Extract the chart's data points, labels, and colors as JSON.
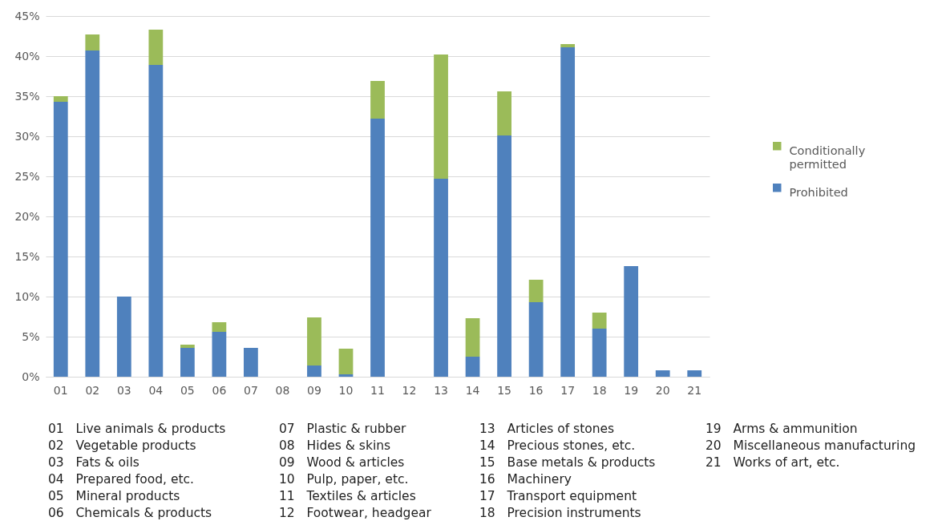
{
  "chart_data": {
    "type": "bar",
    "stacked": true,
    "categories": [
      "01",
      "02",
      "03",
      "04",
      "05",
      "06",
      "07",
      "08",
      "09",
      "10",
      "11",
      "12",
      "13",
      "14",
      "15",
      "16",
      "17",
      "18",
      "19",
      "20",
      "21"
    ],
    "series": [
      {
        "name": "Prohibited",
        "color": "#4f81bd",
        "values": [
          34.3,
          40.7,
          10.0,
          38.9,
          3.6,
          5.6,
          3.6,
          0,
          1.4,
          0.3,
          32.2,
          0,
          24.7,
          2.5,
          30.1,
          9.3,
          41.1,
          6.0,
          13.8,
          0.8,
          0.8
        ]
      },
      {
        "name": "Conditionally permitted",
        "color": "#9bbb59",
        "values": [
          0.7,
          2.0,
          0,
          4.4,
          0.4,
          1.2,
          0,
          0,
          6.0,
          3.2,
          4.7,
          0,
          15.5,
          4.8,
          5.5,
          2.8,
          0.4,
          2.0,
          0,
          0,
          0
        ]
      }
    ],
    "ylim": [
      0,
      45
    ],
    "yticks": [
      {
        "value": 0,
        "label": "0%"
      },
      {
        "value": 5,
        "label": "5%"
      },
      {
        "value": 10,
        "label": "10%"
      },
      {
        "value": 15,
        "label": "15%"
      },
      {
        "value": 20,
        "label": "20%"
      },
      {
        "value": 25,
        "label": "25%"
      },
      {
        "value": 30,
        "label": "30%"
      },
      {
        "value": 35,
        "label": "35%"
      },
      {
        "value": 40,
        "label": "40%"
      },
      {
        "value": 45,
        "label": "45%"
      }
    ],
    "grid": "y",
    "legend": "right",
    "annotations": [
      "01   Live animals & products",
      "02   Vegetable products",
      "03   Fats & oils",
      "04   Prepared food, etc.",
      "05   Mineral products",
      "06   Chemicals & products",
      "07   Plastic & rubber",
      "08   Hides & skins",
      "09   Wood & articles",
      "10   Pulp, paper, etc.",
      "11   Textiles & articles",
      "12   Footwear, headgear",
      "13   Articles of stones",
      "14   Precious stones, etc.",
      "15   Base metals & products",
      "16   Machinery",
      "17   Transport equipment",
      "18   Precision instruments",
      "19   Arms & ammunition",
      "20   Miscellaneous manufacturing",
      "21   Works of art, etc."
    ]
  }
}
